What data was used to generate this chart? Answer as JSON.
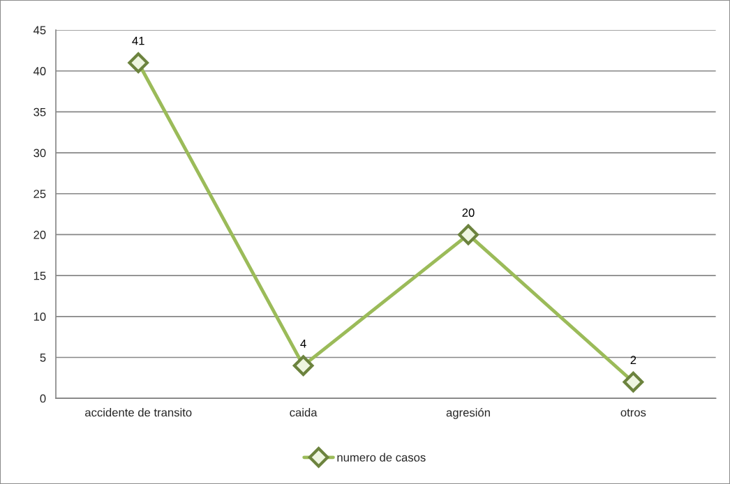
{
  "chart_data": {
    "type": "line",
    "categories": [
      "accidente de transito",
      "caida",
      "agresión",
      "otros"
    ],
    "series": [
      {
        "name": "numero de casos",
        "color": "#9bbb59",
        "values": [
          41,
          4,
          20,
          2
        ]
      }
    ],
    "ylim": [
      0,
      45
    ],
    "yticks": [
      0,
      5,
      10,
      15,
      20,
      25,
      30,
      35,
      40,
      45
    ],
    "grid": "y",
    "legend": "bottom",
    "marker": "diamond",
    "line_style": "solid",
    "data_labels": true
  }
}
